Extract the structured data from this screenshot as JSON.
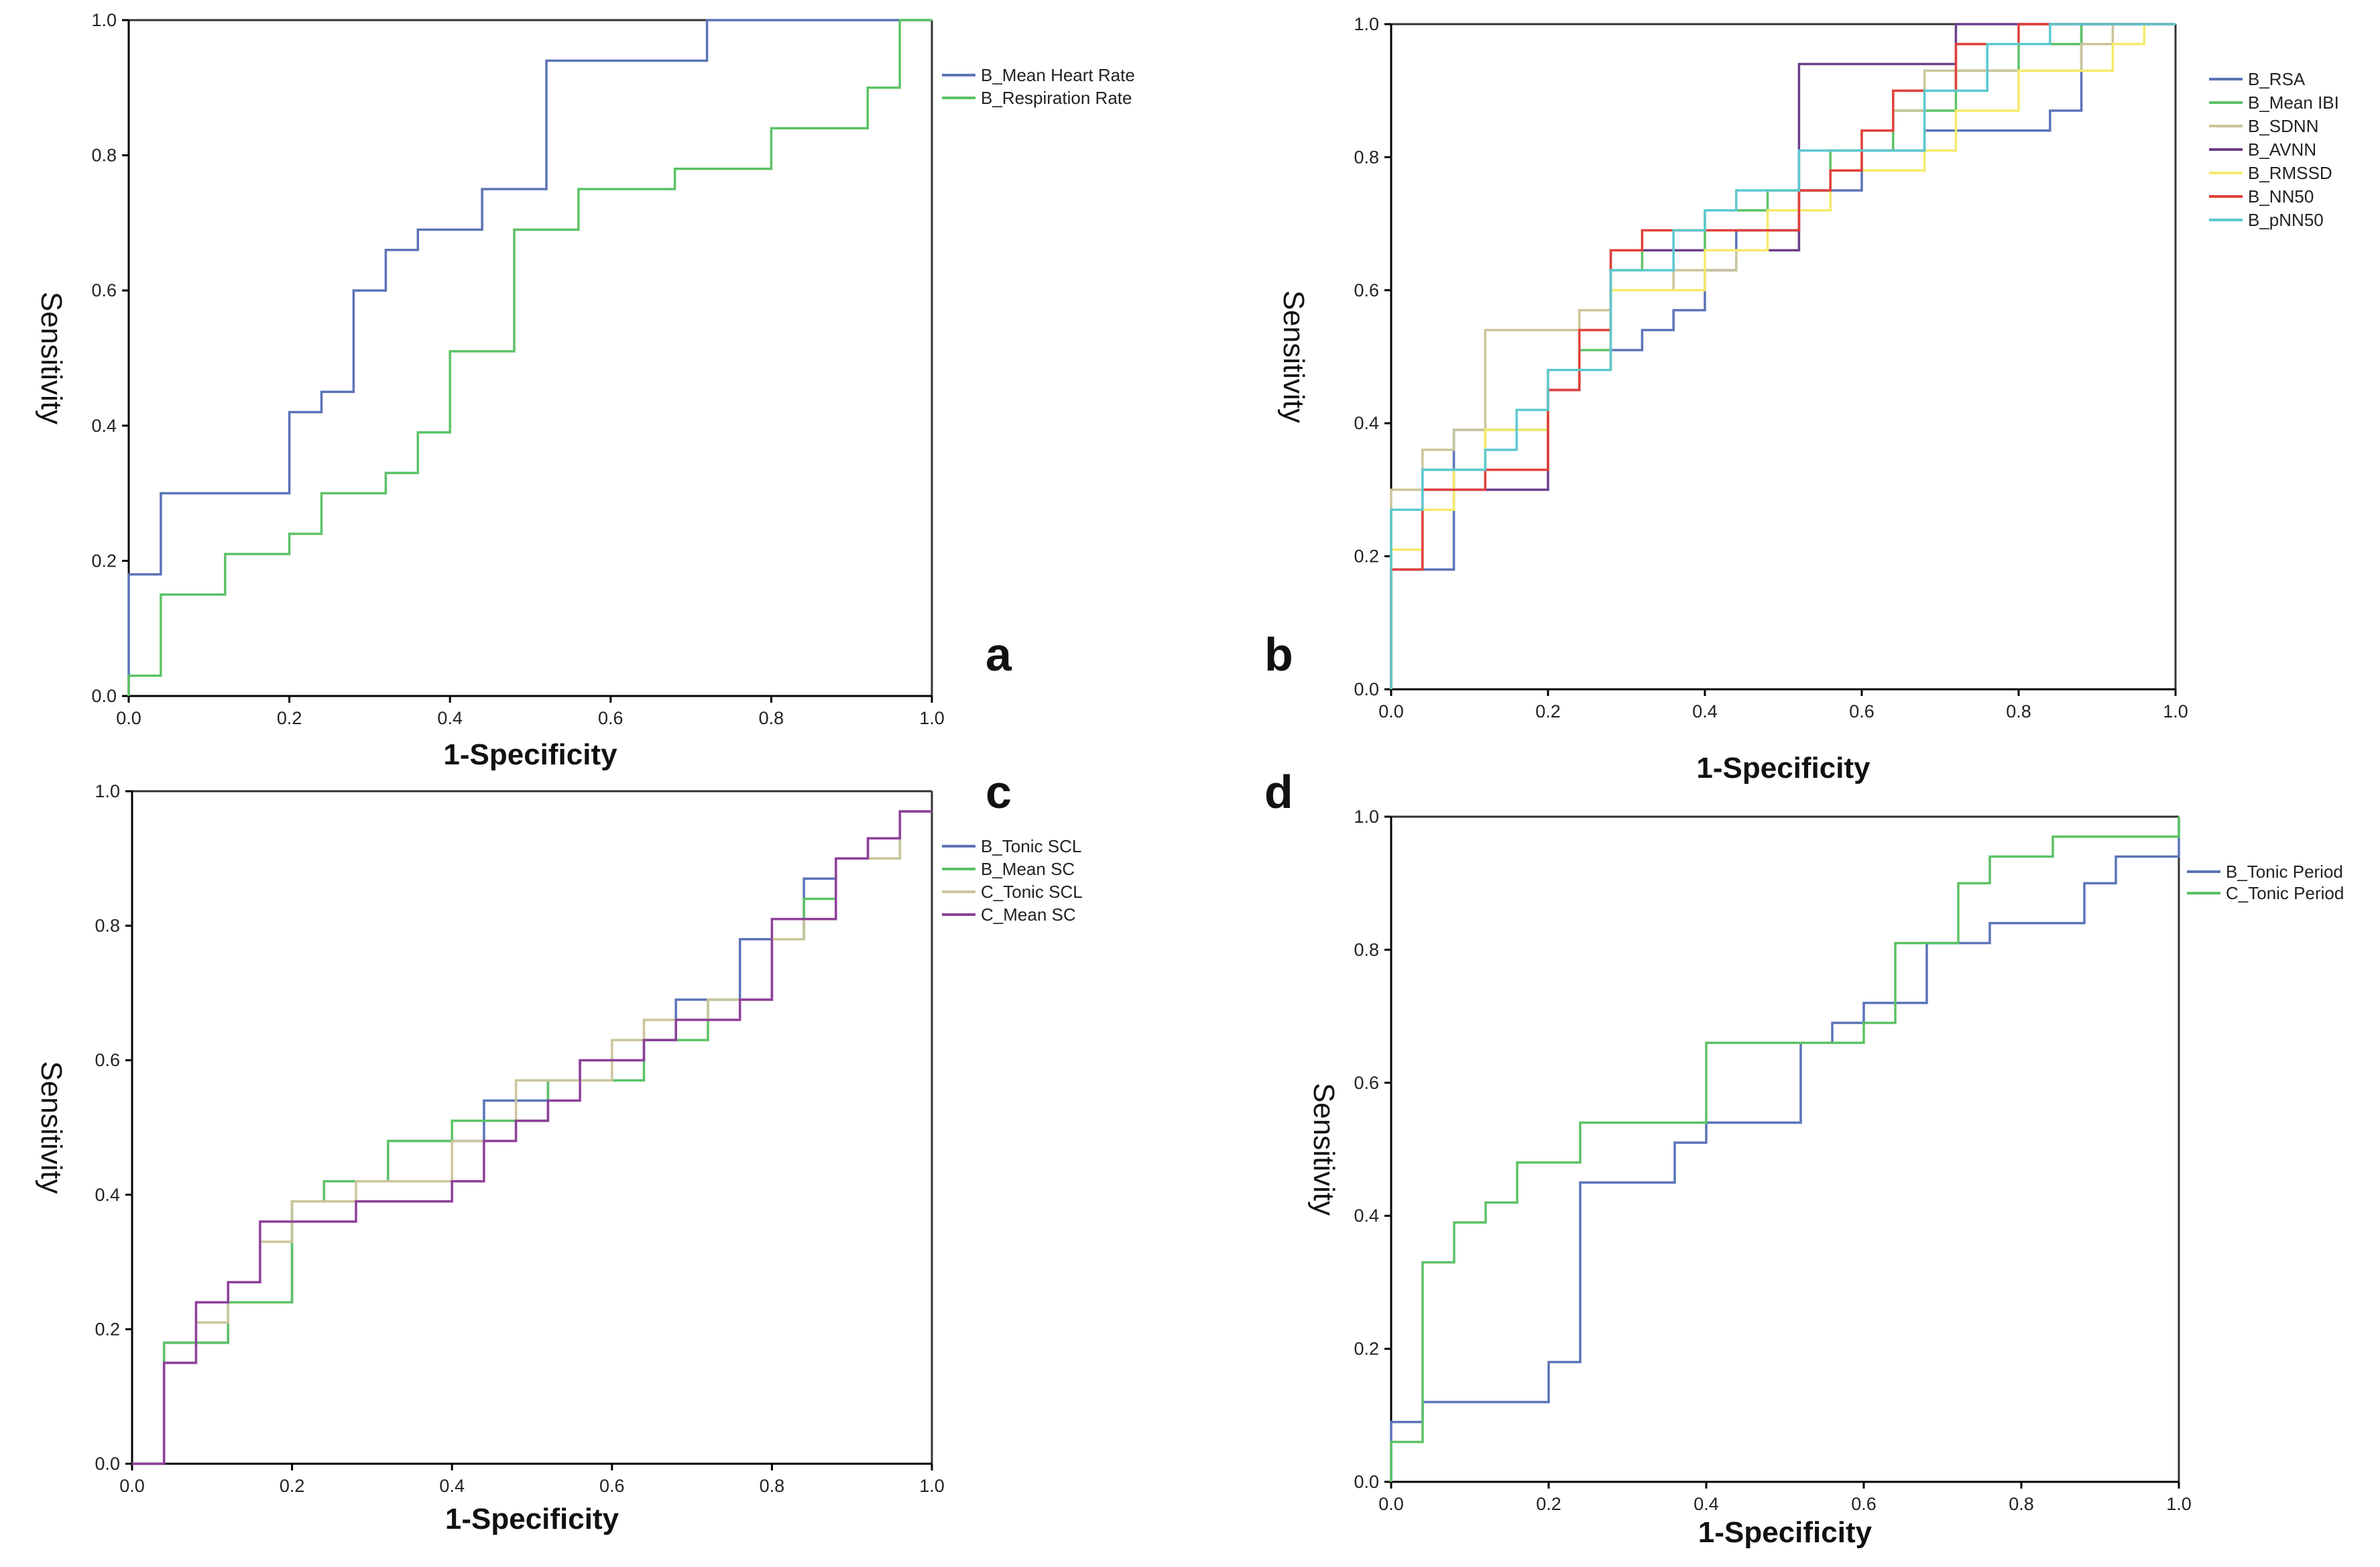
{
  "chart_data": [
    {
      "panel": "a",
      "type": "line",
      "xlabel": "1-Specificity",
      "ylabel": "Sensitivity",
      "xlim": [
        0,
        1
      ],
      "ylim": [
        0,
        1
      ],
      "xticks": [
        "0.0",
        "0.2",
        "0.4",
        "0.6",
        "0.8",
        "1.0"
      ],
      "yticks": [
        "0.0",
        "0.2",
        "0.4",
        "0.6",
        "0.8",
        "1.0"
      ],
      "legend_position": "top-right",
      "series": [
        {
          "name": "B_Mean Heart Rate",
          "color": "#5b74b8",
          "x": [
            0,
            0,
            0.04,
            0.04,
            0.2,
            0.2,
            0.24,
            0.24,
            0.28,
            0.28,
            0.32,
            0.32,
            0.36,
            0.36,
            0.44,
            0.44,
            0.52,
            0.52,
            0.72,
            0.72,
            1
          ],
          "y": [
            0,
            0.18,
            0.18,
            0.3,
            0.3,
            0.42,
            0.42,
            0.45,
            0.45,
            0.6,
            0.6,
            0.66,
            0.66,
            0.69,
            0.69,
            0.75,
            0.75,
            0.94,
            0.94,
            1,
            1
          ]
        },
        {
          "name": "B_Respiration Rate",
          "color": "#5cc266",
          "x": [
            0,
            0,
            0.04,
            0.04,
            0.12,
            0.12,
            0.2,
            0.2,
            0.24,
            0.24,
            0.32,
            0.32,
            0.36,
            0.36,
            0.4,
            0.4,
            0.48,
            0.48,
            0.56,
            0.56,
            0.68,
            0.68,
            0.8,
            0.8,
            0.92,
            0.92,
            0.96,
            0.96,
            1
          ],
          "y": [
            0,
            0.03,
            0.03,
            0.15,
            0.15,
            0.21,
            0.21,
            0.24,
            0.24,
            0.3,
            0.3,
            0.33,
            0.33,
            0.39,
            0.39,
            0.51,
            0.51,
            0.69,
            0.69,
            0.75,
            0.75,
            0.78,
            0.78,
            0.84,
            0.84,
            0.9,
            0.9,
            1,
            1
          ]
        }
      ]
    },
    {
      "panel": "b",
      "type": "line",
      "xlabel": "1-Specificity",
      "ylabel": "Sensitivity",
      "xlim": [
        0,
        1
      ],
      "ylim": [
        0,
        1
      ],
      "xticks": [
        "0.0",
        "0.2",
        "0.4",
        "0.6",
        "0.8",
        "1.0"
      ],
      "yticks": [
        "0.0",
        "0.2",
        "0.4",
        "0.6",
        "0.8",
        "1.0"
      ],
      "legend_position": "top-right",
      "series": [
        {
          "name": "B_RSA",
          "color": "#5b74b8",
          "x": [
            0,
            0,
            0.08,
            0.08,
            0.2,
            0.2,
            0.24,
            0.24,
            0.28,
            0.28,
            0.32,
            0.32,
            0.36,
            0.36,
            0.4,
            0.4,
            0.44,
            0.44,
            0.52,
            0.52,
            0.6,
            0.6,
            0.68,
            0.68,
            0.8,
            0.8,
            0.84,
            0.84,
            0.88,
            0.88,
            1
          ],
          "y": [
            0,
            0.18,
            0.18,
            0.39,
            0.39,
            0.45,
            0.45,
            0.48,
            0.48,
            0.51,
            0.51,
            0.54,
            0.54,
            0.57,
            0.57,
            0.63,
            0.63,
            0.69,
            0.69,
            0.75,
            0.75,
            0.81,
            0.81,
            0.84,
            0.84,
            0.84,
            0.84,
            0.87,
            0.87,
            1,
            1
          ]
        },
        {
          "name": "B_Mean IBI",
          "color": "#5cc266",
          "x": [
            0,
            0,
            0.04,
            0.04,
            0.12,
            0.12,
            0.2,
            0.2,
            0.24,
            0.24,
            0.28,
            0.28,
            0.32,
            0.32,
            0.4,
            0.4,
            0.48,
            0.48,
            0.56,
            0.56,
            0.64,
            0.64,
            0.72,
            0.72,
            0.8,
            0.8,
            0.88,
            0.88,
            1
          ],
          "y": [
            0,
            0.27,
            0.27,
            0.33,
            0.33,
            0.39,
            0.39,
            0.48,
            0.48,
            0.51,
            0.51,
            0.63,
            0.63,
            0.66,
            0.66,
            0.72,
            0.72,
            0.75,
            0.75,
            0.81,
            0.81,
            0.87,
            0.87,
            0.93,
            0.93,
            0.97,
            0.97,
            1,
            1
          ]
        },
        {
          "name": "B_SDNN",
          "color": "#c9c59a",
          "x": [
            0,
            0,
            0.04,
            0.04,
            0.08,
            0.08,
            0.12,
            0.12,
            0.24,
            0.24,
            0.28,
            0.28,
            0.36,
            0.36,
            0.44,
            0.44,
            0.52,
            0.52,
            0.56,
            0.56,
            0.6,
            0.6,
            0.64,
            0.64,
            0.68,
            0.68,
            0.88,
            0.88,
            0.92,
            0.92,
            1
          ],
          "y": [
            0,
            0.3,
            0.3,
            0.36,
            0.36,
            0.39,
            0.39,
            0.54,
            0.54,
            0.57,
            0.57,
            0.6,
            0.6,
            0.63,
            0.63,
            0.66,
            0.66,
            0.72,
            0.72,
            0.78,
            0.78,
            0.84,
            0.84,
            0.87,
            0.87,
            0.93,
            0.93,
            0.97,
            0.97,
            1,
            1
          ]
        },
        {
          "name": "B_AVNN",
          "color": "#6b3f8a",
          "x": [
            0,
            0,
            0.04,
            0.04,
            0.2,
            0.2,
            0.24,
            0.24,
            0.28,
            0.28,
            0.52,
            0.52,
            0.72,
            0.72,
            1
          ],
          "y": [
            0,
            0.18,
            0.18,
            0.3,
            0.3,
            0.45,
            0.45,
            0.48,
            0.48,
            0.66,
            0.66,
            0.94,
            0.94,
            1,
            1
          ]
        },
        {
          "name": "B_RMSSD",
          "color": "#f5ea6a",
          "x": [
            0,
            0,
            0.04,
            0.04,
            0.08,
            0.08,
            0.12,
            0.12,
            0.2,
            0.2,
            0.28,
            0.28,
            0.4,
            0.4,
            0.48,
            0.48,
            0.56,
            0.56,
            0.68,
            0.68,
            0.72,
            0.72,
            0.8,
            0.8,
            0.92,
            0.92,
            0.96,
            0.96,
            1
          ],
          "y": [
            0,
            0.21,
            0.21,
            0.27,
            0.27,
            0.33,
            0.33,
            0.39,
            0.39,
            0.48,
            0.48,
            0.6,
            0.6,
            0.66,
            0.66,
            0.72,
            0.72,
            0.78,
            0.78,
            0.81,
            0.81,
            0.87,
            0.87,
            0.93,
            0.93,
            0.97,
            0.97,
            1,
            1
          ]
        },
        {
          "name": "B_NN50",
          "color": "#e0403a",
          "x": [
            0,
            0,
            0.04,
            0.04,
            0.12,
            0.12,
            0.2,
            0.2,
            0.24,
            0.24,
            0.28,
            0.28,
            0.32,
            0.32,
            0.4,
            0.4,
            0.52,
            0.52,
            0.56,
            0.56,
            0.6,
            0.6,
            0.64,
            0.64,
            0.72,
            0.72,
            0.8,
            0.8,
            1
          ],
          "y": [
            0,
            0.18,
            0.18,
            0.3,
            0.3,
            0.33,
            0.33,
            0.45,
            0.45,
            0.54,
            0.54,
            0.66,
            0.66,
            0.69,
            0.69,
            0.69,
            0.69,
            0.75,
            0.75,
            0.78,
            0.78,
            0.84,
            0.84,
            0.9,
            0.9,
            0.97,
            0.97,
            1,
            1
          ]
        },
        {
          "name": "B_pNN50",
          "color": "#5cc8cf",
          "x": [
            0,
            0,
            0.04,
            0.04,
            0.12,
            0.12,
            0.16,
            0.16,
            0.2,
            0.2,
            0.28,
            0.28,
            0.36,
            0.36,
            0.4,
            0.4,
            0.44,
            0.44,
            0.52,
            0.52,
            0.68,
            0.68,
            0.76,
            0.76,
            0.84,
            0.84,
            1
          ],
          "y": [
            0,
            0.27,
            0.27,
            0.33,
            0.33,
            0.36,
            0.36,
            0.42,
            0.42,
            0.48,
            0.48,
            0.63,
            0.63,
            0.69,
            0.69,
            0.72,
            0.72,
            0.75,
            0.75,
            0.81,
            0.81,
            0.9,
            0.9,
            0.97,
            0.97,
            1,
            1
          ]
        }
      ]
    },
    {
      "panel": "c",
      "type": "line",
      "xlabel": "1-Specificity",
      "ylabel": "Sensitivity",
      "xlim": [
        0,
        1
      ],
      "ylim": [
        0,
        1
      ],
      "xticks": [
        "0.0",
        "0.2",
        "0.4",
        "0.6",
        "0.8",
        "1.0"
      ],
      "yticks": [
        "0.0",
        "0.2",
        "0.4",
        "0.6",
        "0.8",
        "1.0"
      ],
      "legend_position": "top-right",
      "series": [
        {
          "name": "B_Tonic SCL",
          "color": "#5b74b8",
          "x": [
            0,
            0.04,
            0.04,
            0.12,
            0.12,
            0.2,
            0.2,
            0.24,
            0.24,
            0.32,
            0.32,
            0.44,
            0.44,
            0.52,
            0.52,
            0.56,
            0.56,
            0.6,
            0.6,
            0.64,
            0.64,
            0.68,
            0.68,
            0.76,
            0.76,
            0.84,
            0.84,
            0.88,
            0.88,
            0.92,
            0.92,
            0.96,
            0.96,
            1
          ],
          "y": [
            0,
            0,
            0.18,
            0.18,
            0.24,
            0.24,
            0.39,
            0.39,
            0.42,
            0.42,
            0.48,
            0.48,
            0.54,
            0.54,
            0.57,
            0.57,
            0.6,
            0.6,
            0.6,
            0.6,
            0.63,
            0.63,
            0.69,
            0.69,
            0.78,
            0.78,
            0.87,
            0.87,
            0.9,
            0.9,
            0.93,
            0.93,
            0.97,
            0.97
          ]
        },
        {
          "name": "B_Mean SC",
          "color": "#5cc266",
          "x": [
            0,
            0.04,
            0.04,
            0.12,
            0.12,
            0.2,
            0.2,
            0.24,
            0.24,
            0.32,
            0.32,
            0.4,
            0.4,
            0.52,
            0.52,
            0.64,
            0.64,
            0.72,
            0.72,
            0.8,
            0.8,
            0.84,
            0.84,
            0.88,
            0.88,
            0.96,
            0.96,
            1
          ],
          "y": [
            0,
            0,
            0.18,
            0.18,
            0.24,
            0.24,
            0.39,
            0.39,
            0.42,
            0.42,
            0.48,
            0.48,
            0.51,
            0.51,
            0.57,
            0.57,
            0.63,
            0.63,
            0.69,
            0.69,
            0.78,
            0.78,
            0.84,
            0.84,
            0.9,
            0.9,
            0.97,
            0.97
          ]
        },
        {
          "name": "C_Tonic SCL",
          "color": "#c9c59a",
          "x": [
            0,
            0.04,
            0.04,
            0.08,
            0.08,
            0.12,
            0.12,
            0.16,
            0.16,
            0.2,
            0.2,
            0.28,
            0.28,
            0.4,
            0.4,
            0.48,
            0.48,
            0.6,
            0.6,
            0.64,
            0.64,
            0.72,
            0.72,
            0.8,
            0.8,
            0.84,
            0.84,
            0.88,
            0.88,
            0.96,
            0.96,
            1
          ],
          "y": [
            0,
            0,
            0.15,
            0.15,
            0.21,
            0.21,
            0.27,
            0.27,
            0.33,
            0.33,
            0.39,
            0.39,
            0.42,
            0.42,
            0.48,
            0.48,
            0.57,
            0.57,
            0.63,
            0.63,
            0.66,
            0.66,
            0.69,
            0.69,
            0.78,
            0.78,
            0.81,
            0.81,
            0.9,
            0.9,
            0.97,
            0.97
          ]
        },
        {
          "name": "C_Mean SC",
          "color": "#8e3f9a",
          "x": [
            0,
            0.04,
            0.04,
            0.08,
            0.08,
            0.12,
            0.12,
            0.16,
            0.16,
            0.28,
            0.28,
            0.4,
            0.4,
            0.44,
            0.44,
            0.48,
            0.48,
            0.52,
            0.52,
            0.56,
            0.56,
            0.64,
            0.64,
            0.68,
            0.68,
            0.76,
            0.76,
            0.8,
            0.8,
            0.88,
            0.88,
            0.92,
            0.92,
            0.96,
            0.96,
            1
          ],
          "y": [
            0,
            0,
            0.15,
            0.15,
            0.24,
            0.24,
            0.27,
            0.27,
            0.36,
            0.36,
            0.39,
            0.39,
            0.42,
            0.42,
            0.48,
            0.48,
            0.51,
            0.51,
            0.54,
            0.54,
            0.6,
            0.6,
            0.63,
            0.63,
            0.66,
            0.66,
            0.69,
            0.69,
            0.81,
            0.81,
            0.9,
            0.9,
            0.93,
            0.93,
            0.97,
            0.97
          ]
        }
      ]
    },
    {
      "panel": "d",
      "type": "line",
      "xlabel": "1-Specificity",
      "ylabel": "Sensitivity",
      "xlim": [
        0,
        1
      ],
      "ylim": [
        0,
        1
      ],
      "xticks": [
        "0.0",
        "0.2",
        "0.4",
        "0.6",
        "0.8",
        "1.0"
      ],
      "yticks": [
        "0.0",
        "0.2",
        "0.4",
        "0.6",
        "0.8",
        "1.0"
      ],
      "legend_position": "top-right",
      "series": [
        {
          "name": "B_Tonic Period",
          "color": "#5b74b8",
          "x": [
            0,
            0,
            0.04,
            0.04,
            0.2,
            0.2,
            0.24,
            0.24,
            0.36,
            0.36,
            0.4,
            0.4,
            0.52,
            0.52,
            0.56,
            0.56,
            0.6,
            0.6,
            0.68,
            0.68,
            0.76,
            0.76,
            0.88,
            0.88,
            0.92,
            0.92,
            1,
            1
          ],
          "y": [
            0,
            0.09,
            0.09,
            0.12,
            0.12,
            0.18,
            0.18,
            0.45,
            0.45,
            0.51,
            0.51,
            0.54,
            0.54,
            0.66,
            0.66,
            0.69,
            0.69,
            0.72,
            0.72,
            0.81,
            0.81,
            0.84,
            0.84,
            0.9,
            0.9,
            0.94,
            0.94,
            1
          ]
        },
        {
          "name": "C_Tonic Period",
          "color": "#5cc266",
          "x": [
            0,
            0,
            0.04,
            0.04,
            0.08,
            0.08,
            0.12,
            0.12,
            0.16,
            0.16,
            0.24,
            0.24,
            0.4,
            0.4,
            0.6,
            0.6,
            0.64,
            0.64,
            0.72,
            0.72,
            0.76,
            0.76,
            0.84,
            0.84,
            1,
            1
          ],
          "y": [
            0,
            0.06,
            0.06,
            0.33,
            0.33,
            0.39,
            0.39,
            0.42,
            0.42,
            0.48,
            0.48,
            0.54,
            0.54,
            0.66,
            0.66,
            0.69,
            0.69,
            0.81,
            0.81,
            0.9,
            0.9,
            0.94,
            0.94,
            0.97,
            0.97,
            1
          ]
        }
      ]
    }
  ]
}
